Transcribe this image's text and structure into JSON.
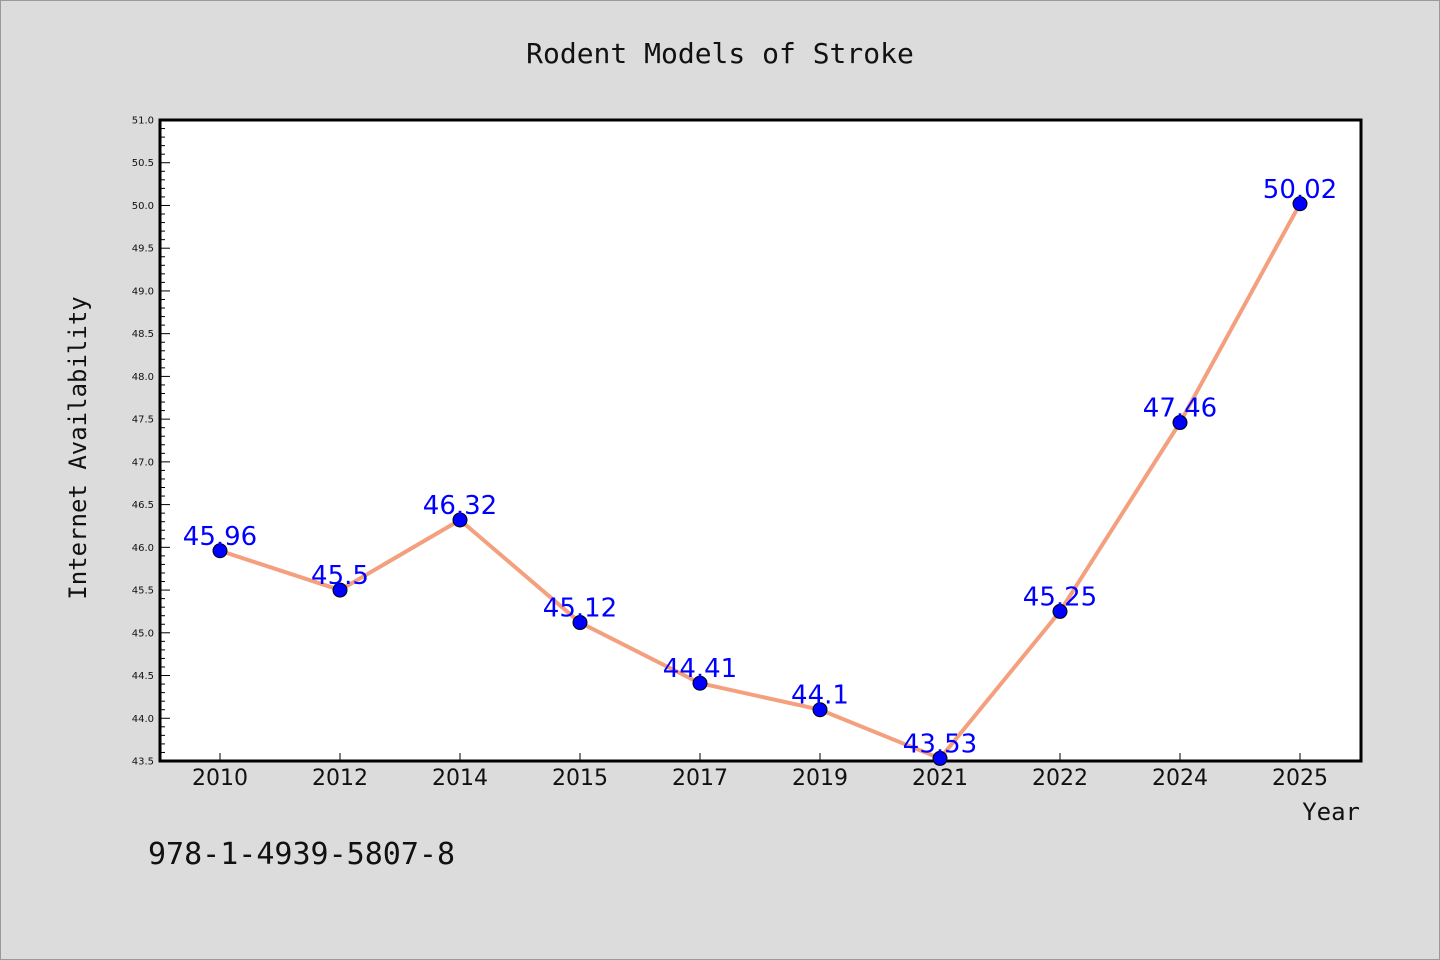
{
  "chart_data": {
    "type": "line",
    "title": "Rodent Models of Stroke",
    "xlabel": "Year",
    "ylabel": "Internet Availability",
    "categories": [
      "2010",
      "2012",
      "2014",
      "2015",
      "2017",
      "2019",
      "2021",
      "2022",
      "2024",
      "2025"
    ],
    "values": [
      45.96,
      45.5,
      46.32,
      45.12,
      44.41,
      44.1,
      43.53,
      45.25,
      47.46,
      50.02
    ],
    "data_labels": [
      "45.96",
      "45.5",
      "46.32",
      "45.12",
      "44.41",
      "44.1",
      "43.53",
      "45.25",
      "47.46",
      "50.02"
    ],
    "ylim": [
      43.5,
      51.0
    ],
    "yticks": [
      "43.5",
      "44.0",
      "44.5",
      "45.0",
      "45.5",
      "46.0",
      "46.5",
      "47.0",
      "47.5",
      "48.0",
      "48.5",
      "49.0",
      "49.5",
      "50.0",
      "50.5",
      "51.0"
    ],
    "grid": false,
    "line_color": "#f4a07f",
    "marker_color": "#0000ff",
    "label_color": "#0000ff"
  },
  "footer": {
    "isbn": "978-1-4939-5807-8"
  }
}
